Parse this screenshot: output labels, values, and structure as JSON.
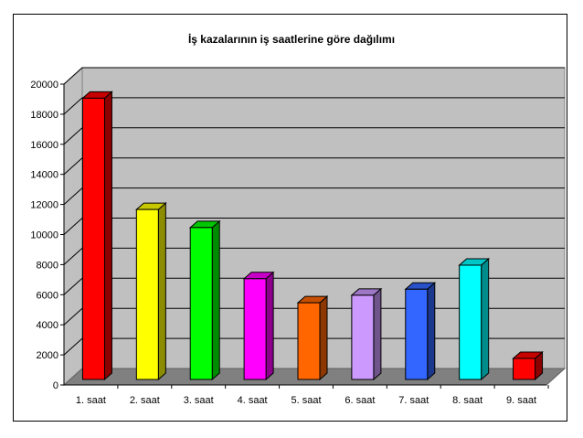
{
  "chart_data": {
    "type": "bar",
    "title": "İş kazalarının iş saatlerine göre dağılımı",
    "xlabel": "",
    "ylabel": "",
    "ylim": [
      0,
      20000
    ],
    "yticks": [
      "0",
      "2000",
      "4000",
      "6000",
      "8000",
      "10000",
      "12000",
      "14000",
      "16000",
      "18000",
      "20000"
    ],
    "grid": true,
    "legend": "none",
    "categories": [
      "1. saat",
      "2. saat",
      "3. saat",
      "4. saat",
      "5. saat",
      "6. saat",
      "7. saat",
      "8. saat",
      "9. saat"
    ],
    "values": [
      18700,
      11300,
      10100,
      6700,
      5100,
      5600,
      6000,
      7600,
      1400
    ],
    "colors": [
      "#ff0000",
      "#ffff00",
      "#00ff00",
      "#ff00ff",
      "#ff6600",
      "#cc99ff",
      "#3366ff",
      "#00ffff",
      "#ff0000"
    ],
    "wall_color": "#c0c0c0",
    "floor_color": "#808080"
  }
}
